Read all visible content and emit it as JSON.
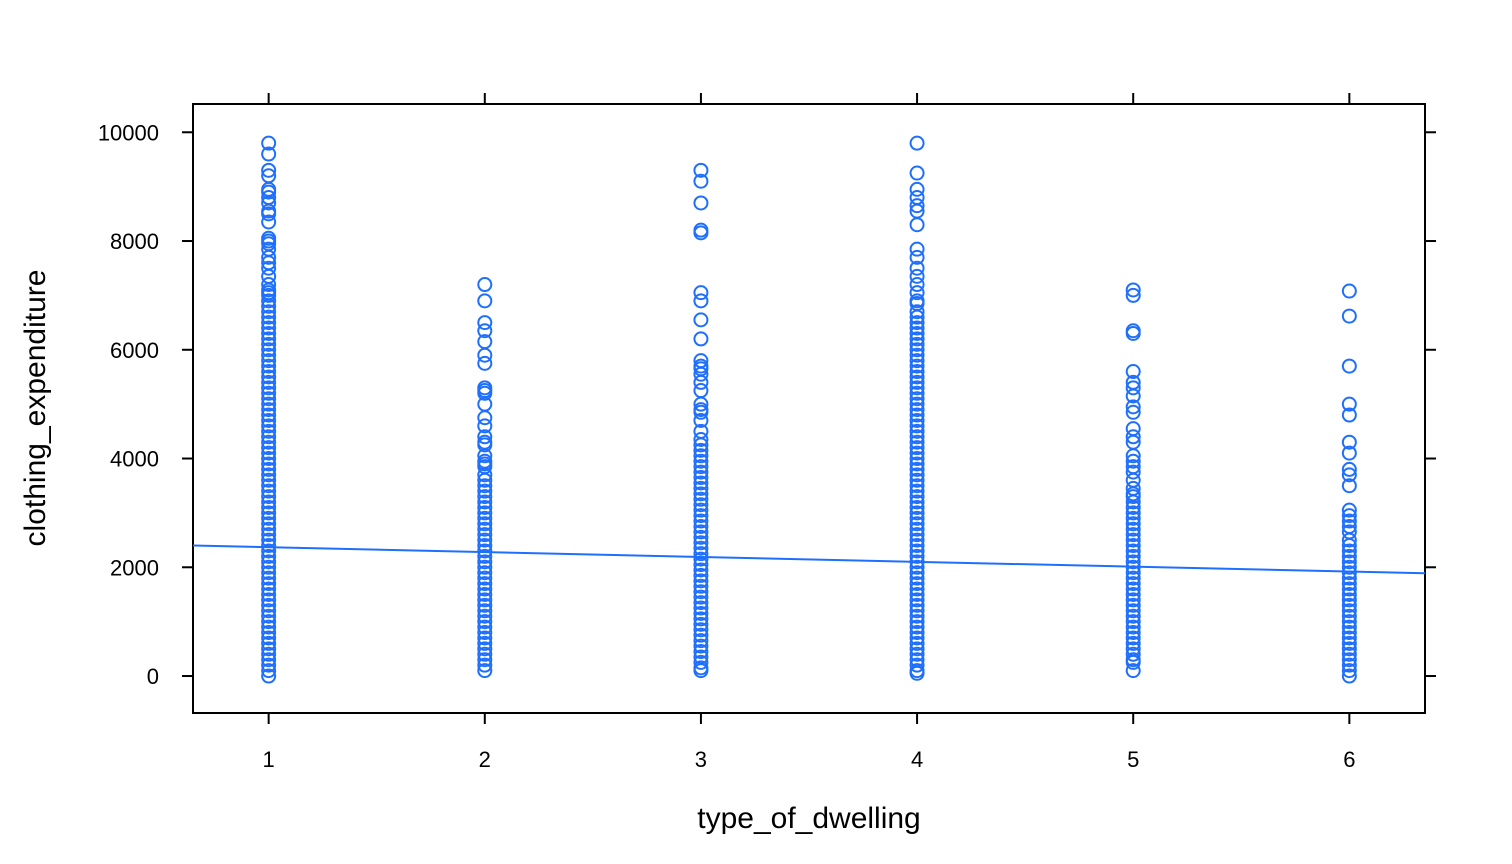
{
  "chart_data": {
    "type": "scatter",
    "xlabel": "type_of_dwelling",
    "ylabel": "clothing_expenditure",
    "x_ticks": [
      "1",
      "2",
      "3",
      "4",
      "5",
      "6"
    ],
    "y_ticks": [
      "0",
      "2000",
      "4000",
      "6000",
      "8000",
      "10000"
    ],
    "xlim": [
      0.65,
      6.35
    ],
    "ylim": [
      -680,
      10520
    ],
    "grid": false,
    "point_color": "#1F6FFF",
    "line_color": "#1F6FFF",
    "regression_line": {
      "x": [
        0.65,
        6.35
      ],
      "y": [
        2400,
        1890
      ]
    },
    "series": [
      {
        "x": 1,
        "y": [
          9800,
          9600,
          9300,
          9200,
          8950,
          8900,
          8800,
          8700,
          8550,
          8500,
          8350,
          8050,
          8000,
          7950,
          7850,
          7700,
          7600,
          7500,
          7350,
          7200,
          7100,
          7050,
          7000,
          6900,
          6800,
          6700,
          6600,
          6500,
          6400,
          6300,
          6200,
          6100,
          6000,
          5900,
          5800,
          5700,
          5600,
          5500,
          5400,
          5300,
          5200,
          5100,
          5000,
          4900,
          4800,
          4700,
          4600,
          4500,
          4400,
          4300,
          4200,
          4100,
          4000,
          3900,
          3800,
          3700,
          3600,
          3500,
          3400,
          3300,
          3200,
          3100,
          3000,
          2900,
          2800,
          2700,
          2600,
          2500,
          2400,
          2300,
          2200,
          2100,
          2000,
          1900,
          1800,
          1700,
          1600,
          1500,
          1400,
          1300,
          1200,
          1100,
          1000,
          900,
          800,
          700,
          600,
          500,
          400,
          300,
          200,
          100,
          0
        ]
      },
      {
        "x": 2,
        "y": [
          7200,
          6900,
          6500,
          6350,
          6150,
          5900,
          5750,
          5300,
          5250,
          5200,
          5000,
          4750,
          4600,
          4400,
          4300,
          4250,
          4050,
          3950,
          3900,
          3850,
          3700,
          3600,
          3500,
          3400,
          3300,
          3200,
          3100,
          3000,
          2900,
          2800,
          2700,
          2600,
          2500,
          2400,
          2300,
          2200,
          2100,
          2000,
          1900,
          1800,
          1700,
          1600,
          1500,
          1400,
          1300,
          1200,
          1100,
          1000,
          900,
          800,
          700,
          600,
          500,
          400,
          300,
          200,
          100
        ]
      },
      {
        "x": 3,
        "y": [
          9300,
          9100,
          8700,
          8200,
          8150,
          7050,
          6900,
          6550,
          6200,
          5800,
          5700,
          5650,
          5550,
          5400,
          5250,
          5000,
          4900,
          4850,
          4700,
          4500,
          4350,
          4250,
          4150,
          4050,
          3950,
          3850,
          3750,
          3650,
          3550,
          3450,
          3350,
          3250,
          3150,
          3050,
          2950,
          2850,
          2750,
          2650,
          2550,
          2450,
          2350,
          2250,
          2150,
          2050,
          1950,
          1850,
          1750,
          1650,
          1550,
          1450,
          1350,
          1250,
          1150,
          1050,
          950,
          850,
          750,
          650,
          550,
          450,
          350,
          250,
          150,
          100
        ]
      },
      {
        "x": 4,
        "y": [
          9800,
          9250,
          8950,
          8800,
          8650,
          8550,
          8300,
          7850,
          7700,
          7500,
          7350,
          7200,
          7050,
          6900,
          6850,
          6700,
          6600,
          6500,
          6400,
          6300,
          6200,
          6100,
          6000,
          5900,
          5800,
          5700,
          5600,
          5500,
          5400,
          5300,
          5200,
          5100,
          5000,
          4900,
          4800,
          4700,
          4600,
          4500,
          4400,
          4300,
          4200,
          4100,
          4000,
          3900,
          3800,
          3700,
          3600,
          3500,
          3400,
          3300,
          3200,
          3100,
          3000,
          2900,
          2800,
          2700,
          2600,
          2500,
          2400,
          2300,
          2200,
          2100,
          2000,
          1900,
          1800,
          1700,
          1600,
          1500,
          1400,
          1300,
          1200,
          1100,
          1000,
          900,
          800,
          700,
          600,
          500,
          400,
          300,
          200,
          100,
          50
        ]
      },
      {
        "x": 5,
        "y": [
          7100,
          7000,
          6350,
          6300,
          5600,
          5400,
          5300,
          5150,
          4950,
          4850,
          4550,
          4400,
          4300,
          4050,
          3950,
          3850,
          3750,
          3600,
          3450,
          3350,
          3300,
          3200,
          3100,
          3000,
          2900,
          2800,
          2700,
          2600,
          2500,
          2400,
          2300,
          2200,
          2100,
          2000,
          1900,
          1800,
          1700,
          1600,
          1500,
          1400,
          1300,
          1200,
          1100,
          1000,
          900,
          800,
          700,
          600,
          500,
          400,
          300,
          250,
          100
        ]
      },
      {
        "x": 6,
        "y": [
          7080,
          6620,
          5700,
          5000,
          4800,
          4300,
          4100,
          3800,
          3700,
          3500,
          3050,
          2950,
          2850,
          2750,
          2650,
          2500,
          2400,
          2300,
          2200,
          2100,
          2000,
          1900,
          1800,
          1700,
          1600,
          1500,
          1400,
          1300,
          1200,
          1100,
          1000,
          900,
          800,
          700,
          600,
          500,
          400,
          300,
          200,
          100,
          0
        ]
      }
    ]
  }
}
